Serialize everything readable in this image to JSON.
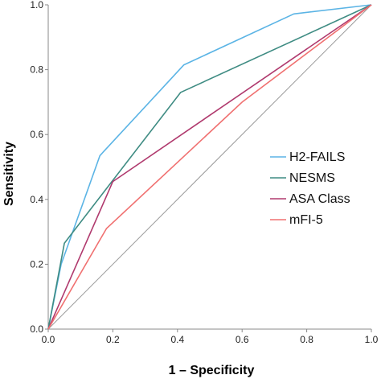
{
  "chart_data": {
    "type": "line",
    "title": "",
    "xlabel": "1 – Specificity",
    "ylabel": "Sensitivity",
    "xlim": [
      0,
      1
    ],
    "ylim": [
      0,
      1
    ],
    "x_ticks": [
      "0.0",
      "0.2",
      "0.4",
      "0.6",
      "0.8",
      "1.0"
    ],
    "y_ticks": [
      "0.0",
      "0.2",
      "0.4",
      "0.6",
      "0.8",
      "1.0"
    ],
    "grid": false,
    "legend_position": "right",
    "series": [
      {
        "name": "H2-FAILS",
        "color": "#5bb4e5",
        "points": [
          [
            0,
            0
          ],
          [
            0.04,
            0.2
          ],
          [
            0.16,
            0.535
          ],
          [
            0.42,
            0.815
          ],
          [
            0.76,
            0.972
          ],
          [
            1,
            1
          ]
        ]
      },
      {
        "name": "NESMS",
        "color": "#3f8c83",
        "points": [
          [
            0,
            0
          ],
          [
            0.05,
            0.265
          ],
          [
            0.41,
            0.73
          ],
          [
            1,
            1
          ]
        ]
      },
      {
        "name": "ASA Class",
        "color": "#b03a6e",
        "points": [
          [
            0,
            0
          ],
          [
            0.2,
            0.455
          ],
          [
            1,
            1
          ]
        ]
      },
      {
        "name": "mFI-5",
        "color": "#f07070",
        "points": [
          [
            0,
            0
          ],
          [
            0.18,
            0.31
          ],
          [
            0.6,
            0.7
          ],
          [
            1,
            1
          ]
        ]
      }
    ]
  }
}
